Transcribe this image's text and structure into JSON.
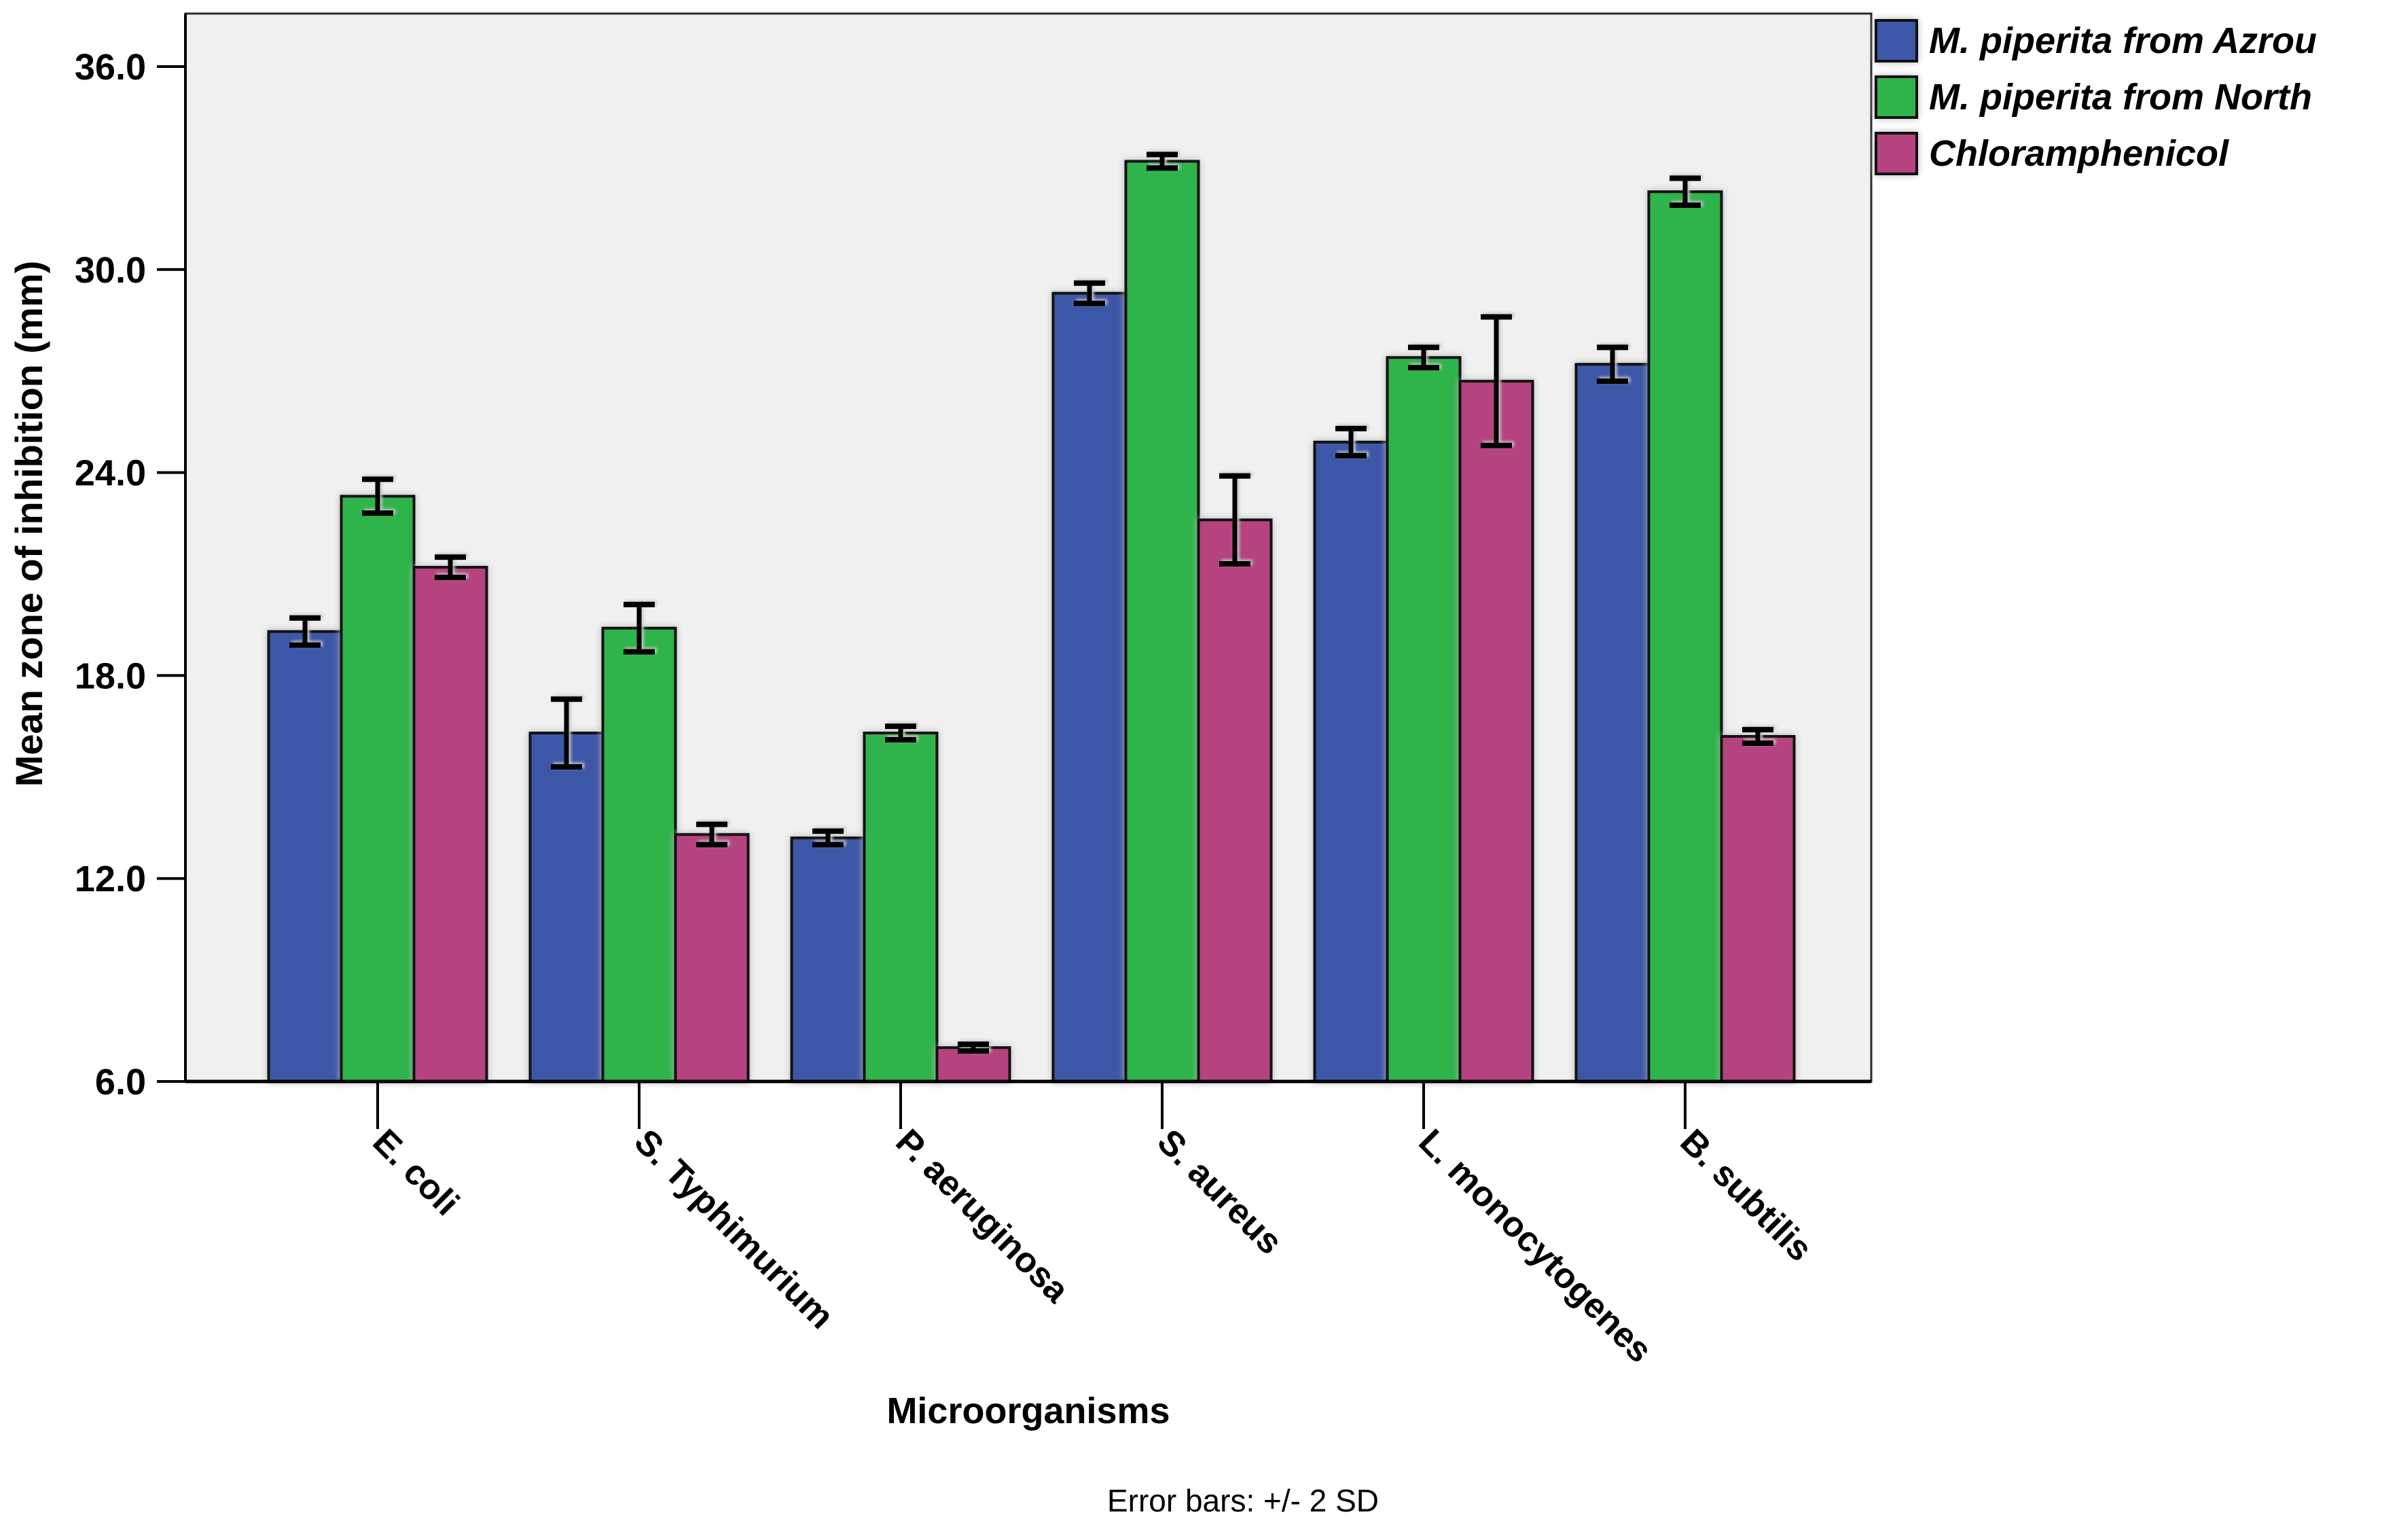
{
  "chart_data": {
    "type": "bar",
    "title": "",
    "xlabel": "Microorganisms",
    "ylabel": "Mean zone of inhibition (mm)",
    "caption": "Error bars: +/- 2 SD",
    "ylim": [
      6.0,
      37.6
    ],
    "yticks": [
      6.0,
      12.0,
      18.0,
      24.0,
      30.0,
      36.0
    ],
    "ytick_labels": [
      "6.0",
      "12.0",
      "18.0",
      "24.0",
      "30.0",
      "36.0"
    ],
    "grid": false,
    "legend_position": "top-right",
    "error_bar_meaning": "+/- 2 SD",
    "x_tick_label_rotation_deg": 45,
    "plot_background": "#F0F0F0",
    "bar_border_color": "#111111",
    "categories": [
      "E. coli",
      "S. Typhimurium",
      "P. aeruginosa",
      "S. aureus",
      "L. monocytogenes",
      "B. subtilis"
    ],
    "series": [
      {
        "name": "M. piperita from Azrou",
        "color": "#3D57A8",
        "values": [
          19.3,
          16.3,
          13.2,
          29.3,
          24.9,
          27.2
        ],
        "err_2sd": [
          0.4,
          1.0,
          0.2,
          0.3,
          0.4,
          0.5
        ]
      },
      {
        "name": "M. piperita from North",
        "color": "#2FB34B",
        "values": [
          23.3,
          19.4,
          16.3,
          33.2,
          27.4,
          32.3
        ],
        "err_2sd": [
          0.5,
          0.7,
          0.2,
          0.2,
          0.3,
          0.4
        ]
      },
      {
        "name": "Chloramphenicol",
        "color": "#B5437F",
        "values": [
          21.2,
          13.3,
          7.0,
          22.6,
          26.7,
          16.2
        ],
        "err_2sd": [
          0.3,
          0.3,
          0.1,
          1.3,
          1.9,
          0.2
        ]
      }
    ]
  }
}
